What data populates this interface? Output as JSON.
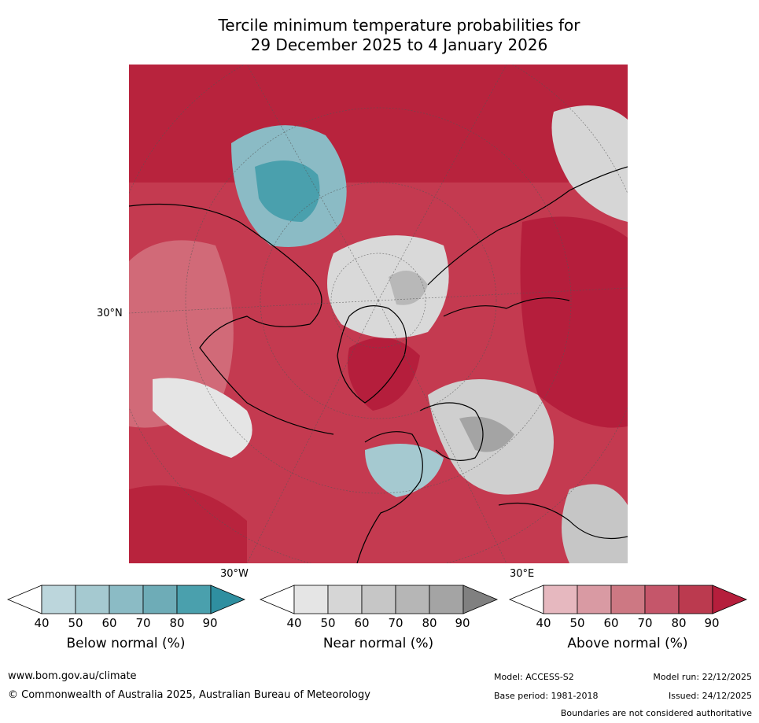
{
  "title": {
    "line1": "Tercile minimum temperature probabilities for",
    "line2": "29 December 2025 to 4 January 2026"
  },
  "map_labels": {
    "lat_label": "30°N",
    "lon_west": "30°W",
    "lon_east": "30°E"
  },
  "colorbars": [
    {
      "title": "Below normal (%)",
      "ticks": [
        "40",
        "50",
        "60",
        "70",
        "80",
        "90"
      ],
      "colors": [
        "#ffffff",
        "#bcd6dc",
        "#a5c9d0",
        "#8bbbc5",
        "#6eacb7",
        "#4aa0ad",
        "#2f8fa0"
      ]
    },
    {
      "title": "Near normal (%)",
      "ticks": [
        "40",
        "50",
        "60",
        "70",
        "80",
        "90"
      ],
      "colors": [
        "#ffffff",
        "#e5e5e5",
        "#d6d6d6",
        "#c6c6c6",
        "#b6b6b6",
        "#a4a4a4",
        "#808080"
      ]
    },
    {
      "title": "Above normal (%)",
      "ticks": [
        "40",
        "50",
        "60",
        "70",
        "80",
        "90"
      ],
      "colors": [
        "#ffffff",
        "#e6b8bf",
        "#d99aa3",
        "#cd7883",
        "#c5566a",
        "#bb3a4f",
        "#b51e3c"
      ]
    }
  ],
  "footer": {
    "website": "www.bom.gov.au/climate",
    "copyright": "© Commonwealth of Australia 2025, Australian Bureau of Meteorology",
    "model": "Model: ACCESS-S2",
    "base_period": "Base period: 1981-2018",
    "model_run": "Model run: 22/12/2025",
    "issued": "Issued: 24/12/2025",
    "disclaimer": "Boundaries are not considered authoritative"
  }
}
